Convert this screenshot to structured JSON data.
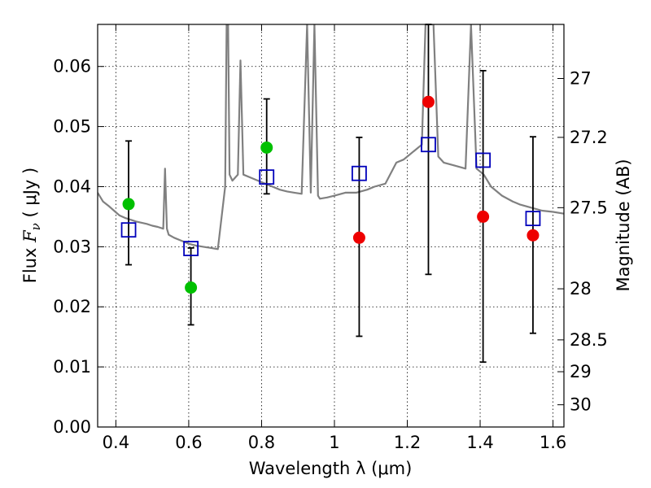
{
  "chart_data": {
    "type": "scatter",
    "xlabel": "Wavelength  λ (μm)",
    "ylabel": "Flux  F_ν  ( μJy )",
    "ylabel_parts": {
      "pre": "Flux  ",
      "sym": "F",
      "sub": "ν",
      "post": "  ( μJy )"
    },
    "y2label": "Magnitude (AB)",
    "xlim": [
      0.35,
      1.63
    ],
    "ylim": [
      0.0,
      0.067
    ],
    "grid": true,
    "x_ticks": [
      0.4,
      0.6,
      0.8,
      1.0,
      1.2,
      1.4,
      1.6
    ],
    "x_tick_labels": [
      "0.4",
      "0.6",
      "0.8",
      "1",
      "1.2",
      "1.4",
      "1.6"
    ],
    "y_ticks": [
      0.0,
      0.01,
      0.02,
      0.03,
      0.04,
      0.05,
      0.06
    ],
    "y_tick_labels": [
      "0.00",
      "0.01",
      "0.02",
      "0.03",
      "0.04",
      "0.05",
      "0.06"
    ],
    "y2_ticks": [
      {
        "label": "27",
        "flux": 0.058
      },
      {
        "label": "27.2",
        "flux": 0.0482
      },
      {
        "label": "27.5",
        "flux": 0.0365
      },
      {
        "label": "28",
        "flux": 0.023
      },
      {
        "label": "28.5",
        "flux": 0.0145
      },
      {
        "label": "29",
        "flux": 0.0092
      },
      {
        "label": "30",
        "flux": 0.0037
      }
    ],
    "colors": {
      "spectrum": "#808080",
      "green_points": "#00c000",
      "red_points": "#ee0000",
      "model_squares": "#0000bb",
      "error_bars": "#000000"
    },
    "series": [
      {
        "kind": "observed-green",
        "points": [
          {
            "x": 0.435,
            "y": 0.0371,
            "yerr_low": 0.027,
            "yerr_high": 0.0476
          },
          {
            "x": 0.606,
            "y": 0.0232,
            "yerr_low": 0.017,
            "yerr_high": 0.0298
          },
          {
            "x": 0.814,
            "y": 0.0465,
            "yerr_low": 0.0388,
            "yerr_high": 0.0546
          }
        ]
      },
      {
        "kind": "observed-red",
        "points": [
          {
            "x": 1.068,
            "y": 0.0315,
            "yerr_low": 0.0151,
            "yerr_high": 0.0482
          },
          {
            "x": 1.258,
            "y": 0.0541,
            "yerr_low": 0.0254,
            "yerr_high": 0.067
          },
          {
            "x": 1.408,
            "y": 0.035,
            "yerr_low": 0.0108,
            "yerr_high": 0.0593
          },
          {
            "x": 1.545,
            "y": 0.0319,
            "yerr_low": 0.0156,
            "yerr_high": 0.0483
          }
        ]
      },
      {
        "kind": "model-squares",
        "points": [
          {
            "x": 0.435,
            "y": 0.0328
          },
          {
            "x": 0.606,
            "y": 0.0297
          },
          {
            "x": 0.814,
            "y": 0.0416
          },
          {
            "x": 1.068,
            "y": 0.0422
          },
          {
            "x": 1.258,
            "y": 0.047
          },
          {
            "x": 1.408,
            "y": 0.0444
          },
          {
            "x": 1.545,
            "y": 0.0347
          }
        ]
      },
      {
        "kind": "model-spectrum",
        "x": [
          0.35,
          0.365,
          0.38,
          0.395,
          0.41,
          0.425,
          0.44,
          0.455,
          0.47,
          0.485,
          0.5,
          0.515,
          0.53,
          0.535,
          0.54,
          0.545,
          0.56,
          0.58,
          0.6,
          0.62,
          0.64,
          0.66,
          0.68,
          0.7,
          0.704,
          0.708,
          0.712,
          0.72,
          0.735,
          0.742,
          0.75,
          0.77,
          0.79,
          0.81,
          0.83,
          0.85,
          0.87,
          0.89,
          0.91,
          0.925,
          0.935,
          0.945,
          0.955,
          0.96,
          0.98,
          1.0,
          1.03,
          1.06,
          1.09,
          1.11,
          1.14,
          1.17,
          1.19,
          1.2,
          1.22,
          1.24,
          1.25,
          1.26,
          1.272,
          1.285,
          1.3,
          1.33,
          1.36,
          1.375,
          1.39,
          1.41,
          1.43,
          1.46,
          1.49,
          1.51,
          1.54,
          1.57,
          1.6,
          1.63
        ],
        "y": [
          0.039,
          0.0375,
          0.0368,
          0.036,
          0.0352,
          0.0348,
          0.0345,
          0.0342,
          0.034,
          0.0338,
          0.0335,
          0.0333,
          0.033,
          0.043,
          0.033,
          0.032,
          0.0315,
          0.031,
          0.0305,
          0.0302,
          0.03,
          0.0298,
          0.0296,
          0.04,
          0.067,
          0.067,
          0.042,
          0.041,
          0.042,
          0.061,
          0.042,
          0.0415,
          0.041,
          0.0405,
          0.04,
          0.0395,
          0.0392,
          0.039,
          0.0388,
          0.067,
          0.039,
          0.067,
          0.0385,
          0.038,
          0.0382,
          0.0385,
          0.039,
          0.039,
          0.0395,
          0.04,
          0.0405,
          0.044,
          0.0445,
          0.045,
          0.046,
          0.047,
          0.067,
          0.067,
          0.067,
          0.045,
          0.044,
          0.0435,
          0.043,
          0.067,
          0.043,
          0.042,
          0.04,
          0.0385,
          0.0375,
          0.037,
          0.0365,
          0.036,
          0.0358,
          0.0355
        ]
      }
    ]
  }
}
